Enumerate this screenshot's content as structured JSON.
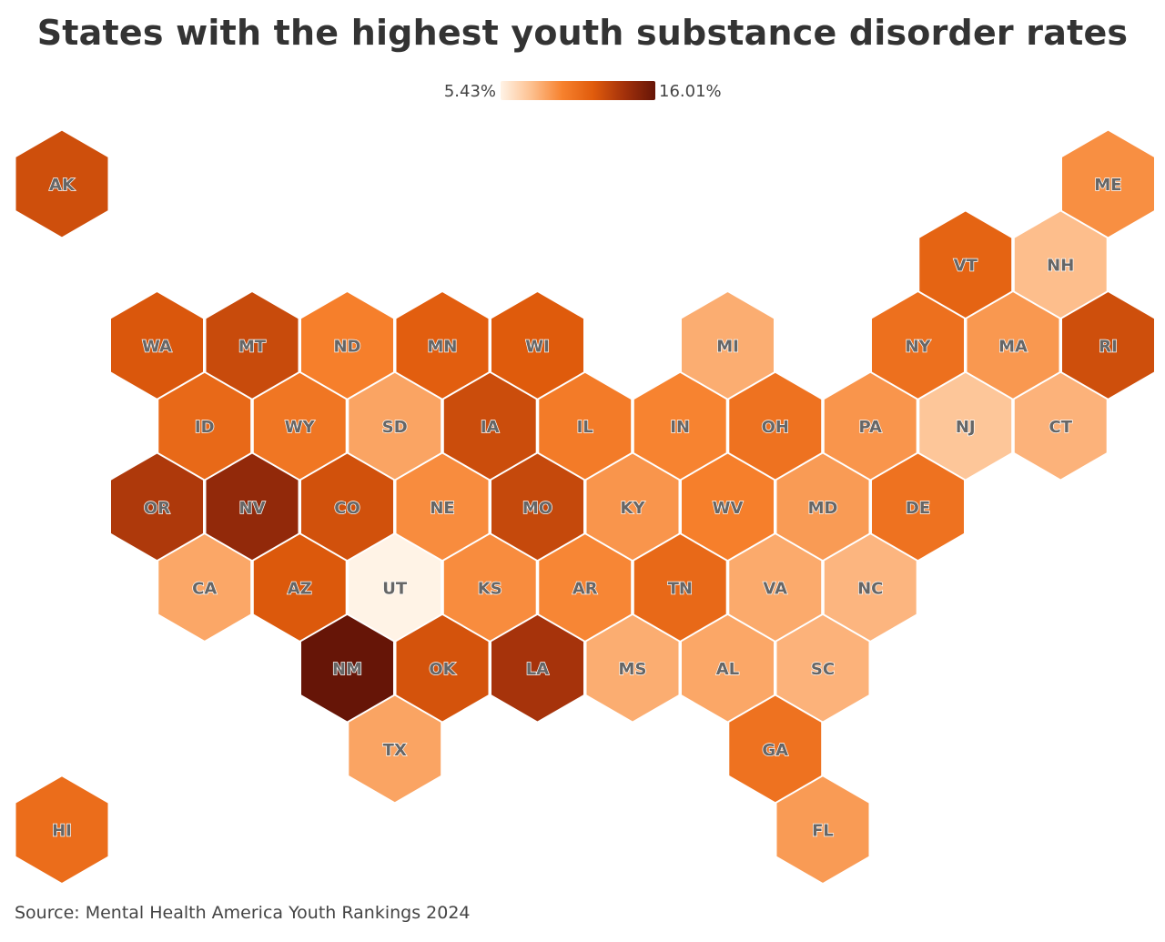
{
  "title": "States with the highest youth substance disorder rates",
  "legend": {
    "min_label": "5.43%",
    "max_label": "16.01%",
    "min_value": 5.43,
    "max_value": 16.01,
    "colors": [
      "#fff3e6",
      "#fdc08f",
      "#f7812d",
      "#e05b0c",
      "#a3310b",
      "#661507"
    ]
  },
  "source": "Source: Mental Health America Youth Rankings 2024",
  "chart_data": {
    "type": "heatmap",
    "title": "States with the highest youth substance disorder rates",
    "units": "%",
    "range": [
      5.43,
      16.01
    ],
    "states": [
      {
        "code": "AK",
        "value": 12.4,
        "row": 0,
        "col": 0
      },
      {
        "code": "ME",
        "value": 9.2,
        "row": 0,
        "col": 11
      },
      {
        "code": "VT",
        "value": 11.3,
        "row": 1,
        "col": 9.5
      },
      {
        "code": "NH",
        "value": 7.6,
        "row": 1,
        "col": 10.5
      },
      {
        "code": "WA",
        "value": 12.0,
        "row": 2,
        "col": 1
      },
      {
        "code": "MT",
        "value": 12.6,
        "row": 2,
        "col": 2
      },
      {
        "code": "ND",
        "value": 9.8,
        "row": 2,
        "col": 3
      },
      {
        "code": "MN",
        "value": 11.6,
        "row": 2,
        "col": 4
      },
      {
        "code": "WI",
        "value": 11.8,
        "row": 2,
        "col": 5
      },
      {
        "code": "MI",
        "value": 8.2,
        "row": 2,
        "col": 7
      },
      {
        "code": "NY",
        "value": 10.6,
        "row": 2,
        "col": 9
      },
      {
        "code": "MA",
        "value": 8.9,
        "row": 2,
        "col": 10
      },
      {
        "code": "RI",
        "value": 12.4,
        "row": 2,
        "col": 11
      },
      {
        "code": "ID",
        "value": 11.0,
        "row": 3,
        "col": 1.5
      },
      {
        "code": "WY",
        "value": 10.3,
        "row": 3,
        "col": 2.5
      },
      {
        "code": "SD",
        "value": 8.5,
        "row": 3,
        "col": 3.5
      },
      {
        "code": "IA",
        "value": 12.5,
        "row": 3,
        "col": 4.5
      },
      {
        "code": "IL",
        "value": 10.0,
        "row": 3,
        "col": 5.5
      },
      {
        "code": "IN",
        "value": 9.6,
        "row": 3,
        "col": 6.5
      },
      {
        "code": "OH",
        "value": 10.5,
        "row": 3,
        "col": 7.5
      },
      {
        "code": "PA",
        "value": 9.0,
        "row": 3,
        "col": 8.5
      },
      {
        "code": "NJ",
        "value": 7.3,
        "row": 3,
        "col": 9.5
      },
      {
        "code": "CT",
        "value": 8.0,
        "row": 3,
        "col": 10.5
      },
      {
        "code": "OR",
        "value": 13.5,
        "row": 4,
        "col": 1
      },
      {
        "code": "NV",
        "value": 14.5,
        "row": 4,
        "col": 2
      },
      {
        "code": "CO",
        "value": 12.3,
        "row": 4,
        "col": 3
      },
      {
        "code": "NE",
        "value": 9.3,
        "row": 4,
        "col": 4
      },
      {
        "code": "MO",
        "value": 12.7,
        "row": 4,
        "col": 5
      },
      {
        "code": "KY",
        "value": 9.0,
        "row": 4,
        "col": 6
      },
      {
        "code": "WV",
        "value": 9.8,
        "row": 4,
        "col": 7
      },
      {
        "code": "MD",
        "value": 8.8,
        "row": 4,
        "col": 8
      },
      {
        "code": "DE",
        "value": 10.5,
        "row": 4,
        "col": 9
      },
      {
        "code": "CA",
        "value": 8.4,
        "row": 5,
        "col": 1.5
      },
      {
        "code": "AZ",
        "value": 11.9,
        "row": 5,
        "col": 2.5
      },
      {
        "code": "UT",
        "value": 5.43,
        "row": 5,
        "col": 3.5
      },
      {
        "code": "KS",
        "value": 9.3,
        "row": 5,
        "col": 4.5
      },
      {
        "code": "AR",
        "value": 9.5,
        "row": 5,
        "col": 5.5
      },
      {
        "code": "TN",
        "value": 11.0,
        "row": 5,
        "col": 6.5
      },
      {
        "code": "VA",
        "value": 8.3,
        "row": 5,
        "col": 7.5
      },
      {
        "code": "NC",
        "value": 7.9,
        "row": 5,
        "col": 8.5
      },
      {
        "code": "NM",
        "value": 16.01,
        "row": 6,
        "col": 3
      },
      {
        "code": "OK",
        "value": 12.2,
        "row": 6,
        "col": 4
      },
      {
        "code": "LA",
        "value": 13.8,
        "row": 6,
        "col": 5
      },
      {
        "code": "MS",
        "value": 8.2,
        "row": 6,
        "col": 6
      },
      {
        "code": "AL",
        "value": 8.4,
        "row": 6,
        "col": 7
      },
      {
        "code": "SC",
        "value": 8.0,
        "row": 6,
        "col": 8
      },
      {
        "code": "TX",
        "value": 8.5,
        "row": 7,
        "col": 3.5
      },
      {
        "code": "GA",
        "value": 10.5,
        "row": 7,
        "col": 7.5
      },
      {
        "code": "HI",
        "value": 10.8,
        "row": 8,
        "col": 0
      },
      {
        "code": "FL",
        "value": 8.8,
        "row": 8,
        "col": 8
      }
    ]
  }
}
